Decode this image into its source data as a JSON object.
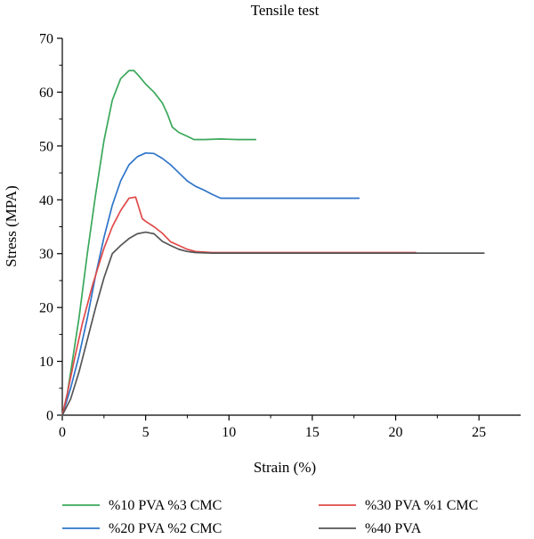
{
  "chart_data": {
    "type": "line",
    "title": "Tensile test",
    "xlabel": "Strain (%)",
    "ylabel": "Stress (MPA)",
    "xlim": [
      0,
      27.5
    ],
    "ylim": [
      0,
      70
    ],
    "xticks": [
      0,
      5,
      10,
      15,
      20,
      25
    ],
    "yticks": [
      0,
      10,
      20,
      30,
      40,
      50,
      60,
      70
    ],
    "grid": false,
    "legend": "bottom",
    "series": [
      {
        "name": "%10 PVA %3 CMC",
        "color": "#3aa85a",
        "x": [
          0,
          0.3,
          0.6,
          1.0,
          1.5,
          2.0,
          2.5,
          3.0,
          3.5,
          4.0,
          4.3,
          4.6,
          5.0,
          5.5,
          6.0,
          6.3,
          6.6,
          7.0,
          7.5,
          7.9,
          8.5,
          9.5,
          10.5,
          11.6
        ],
        "y": [
          0,
          4,
          10,
          18,
          30,
          41,
          51,
          58.5,
          62.5,
          64,
          64,
          63,
          61.5,
          60,
          58,
          56,
          53.5,
          52.5,
          51.8,
          51.2,
          51.2,
          51.3,
          51.2,
          51.2
        ]
      },
      {
        "name": "%20 PVA %2 CMC",
        "color": "#2e74c9",
        "x": [
          0,
          0.5,
          1.0,
          1.5,
          2.0,
          2.5,
          3.0,
          3.5,
          4.0,
          4.5,
          5.0,
          5.5,
          6.0,
          6.5,
          7.0,
          7.5,
          8.0,
          8.5,
          9.0,
          9.5,
          10.5,
          12.0,
          14.0,
          16.0,
          17.8
        ],
        "y": [
          0,
          5,
          11,
          18,
          26,
          33,
          39,
          43.5,
          46.5,
          48,
          48.7,
          48.6,
          47.7,
          46.5,
          45,
          43.5,
          42.5,
          41.8,
          41,
          40.3,
          40.3,
          40.3,
          40.3,
          40.3,
          40.3
        ]
      },
      {
        "name": "%30 PVA %1 CMC",
        "color": "#e04a4a",
        "x": [
          0,
          0.3,
          0.7,
          1.2,
          1.8,
          2.5,
          3.0,
          3.5,
          4.0,
          4.4,
          4.6,
          4.8,
          5.0,
          5.5,
          6.0,
          6.5,
          7.0,
          7.5,
          8.0,
          9.0,
          10.0,
          12.0,
          15.0,
          18.0,
          21.2
        ],
        "y": [
          0,
          4,
          10,
          17,
          24,
          31,
          35,
          38,
          40.3,
          40.5,
          38.5,
          36.5,
          36,
          35,
          33.8,
          32.2,
          31.5,
          30.8,
          30.4,
          30.2,
          30.2,
          30.2,
          30.2,
          30.2,
          30.2
        ]
      },
      {
        "name": "%40 PVA",
        "color": "#555555",
        "x": [
          0,
          0.5,
          1.0,
          1.5,
          2.0,
          2.5,
          3.0,
          3.5,
          4.0,
          4.5,
          5.0,
          5.5,
          6.0,
          6.5,
          7.0,
          7.5,
          8.0,
          9.0,
          10.0,
          12.0,
          15.0,
          18.0,
          21.0,
          23.0,
          25.3
        ],
        "y": [
          0,
          3,
          8,
          14,
          20,
          25.5,
          30,
          31.5,
          32.8,
          33.7,
          34,
          33.7,
          32.3,
          31.5,
          30.8,
          30.4,
          30.2,
          30.1,
          30.1,
          30.1,
          30.1,
          30.1,
          30.1,
          30.1,
          30.1
        ]
      }
    ]
  }
}
